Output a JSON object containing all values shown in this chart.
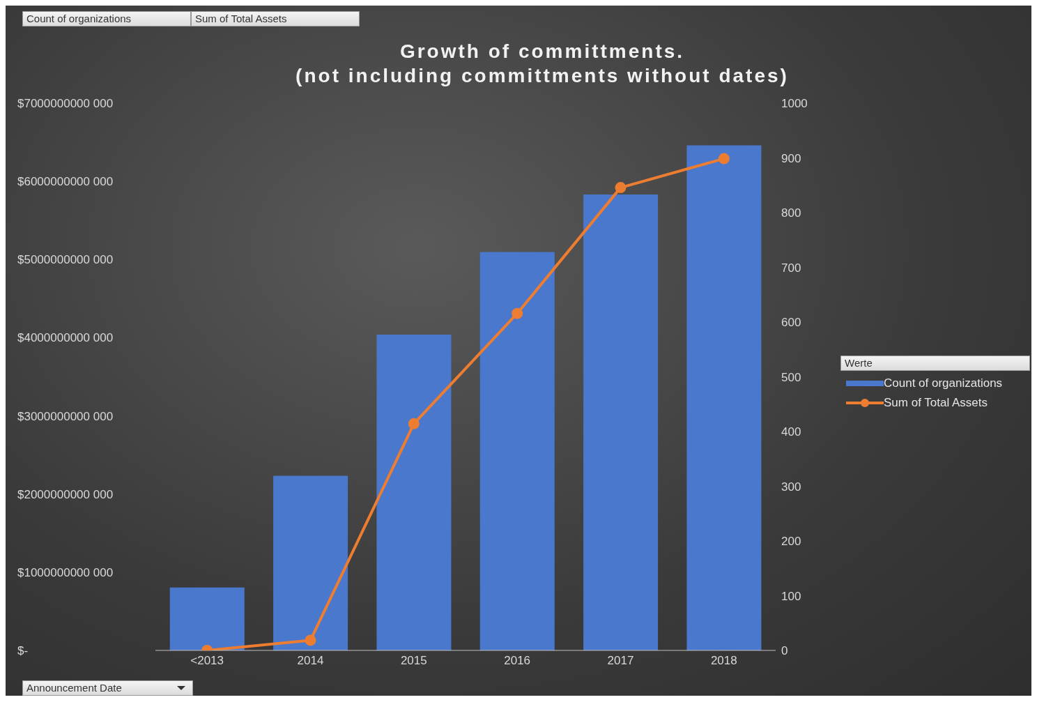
{
  "chart_data": {
    "type": "bar",
    "title": "Growth of committments.\n(not including committments without dates)",
    "categories": [
      "<2013",
      "2014",
      "2015",
      "2016",
      "2017",
      "2018"
    ],
    "series": [
      {
        "name": "Count of organizations",
        "axis": "y2",
        "color": "#4a78cc",
        "values": [
          115,
          319,
          577,
          728,
          833,
          923
        ]
      },
      {
        "name": "Sum of Total Assets",
        "type": "line",
        "axis": "y",
        "color": "#ed7d31",
        "values": [
          0,
          130000000000,
          2900000000000,
          4310000000000,
          5920000000000,
          6290000000000
        ]
      }
    ],
    "ylim": [
      0,
      7000000000000
    ],
    "yticks": [
      {
        "value": 0,
        "label": "$-"
      },
      {
        "value": 1000000000000,
        "label": "$1000000000 000"
      },
      {
        "value": 2000000000000,
        "label": "$2000000000 000"
      },
      {
        "value": 3000000000000,
        "label": "$3000000000 000"
      },
      {
        "value": 4000000000000,
        "label": "$4000000000 000"
      },
      {
        "value": 5000000000000,
        "label": "$5000000000 000"
      },
      {
        "value": 6000000000000,
        "label": "$6000000000 000"
      },
      {
        "value": 7000000000000,
        "label": "$7000000000 000"
      }
    ],
    "y2lim": [
      0,
      1000
    ],
    "y2ticks": [
      0,
      100,
      200,
      300,
      400,
      500,
      600,
      700,
      800,
      900,
      1000
    ],
    "xlabel": "Announcement Date",
    "legend": "right",
    "legend_title": "Werte",
    "marker": "circle",
    "annotations": [
      "Count of organizations",
      "Sum of Total Assets"
    ]
  }
}
